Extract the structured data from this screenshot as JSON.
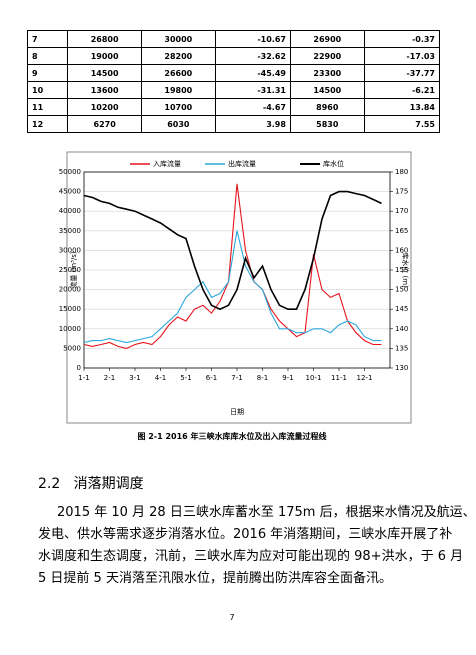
{
  "table": {
    "rows": [
      [
        "7",
        "26800",
        "30000",
        "-10.67",
        "26900",
        "-0.37"
      ],
      [
        "8",
        "19000",
        "28200",
        "-32.62",
        "22900",
        "-17.03"
      ],
      [
        "9",
        "14500",
        "26600",
        "-45.49",
        "23300",
        "-37.77"
      ],
      [
        "10",
        "13600",
        "19800",
        "-31.31",
        "14500",
        "-6.21"
      ],
      [
        "11",
        "10200",
        "10700",
        "-4.67",
        "8960",
        "13.84"
      ],
      [
        "12",
        "6270",
        "6030",
        "3.98",
        "5830",
        "7.55"
      ]
    ]
  },
  "chart_data": {
    "type": "line",
    "xlabel": "日期",
    "ylabel": "流量 (m³/s)",
    "y2label": "库水位 (m)",
    "categories": [
      "1-1",
      null,
      null,
      "2-1",
      null,
      null,
      "3-1",
      null,
      null,
      "4-1",
      null,
      null,
      "5-1",
      null,
      null,
      "6-1",
      null,
      null,
      "7-1",
      null,
      null,
      "8-1",
      null,
      null,
      "9-1",
      null,
      null,
      "10-1",
      null,
      null,
      "11-1",
      null,
      null,
      "12-1",
      null,
      null
    ],
    "series": [
      {
        "name": "入库流量",
        "color": "#e8141c",
        "values": [
          6000,
          5500,
          6000,
          6500,
          5500,
          5000,
          6000,
          6500,
          6000,
          8000,
          11000,
          13000,
          12000,
          15000,
          16000,
          14000,
          17000,
          22000,
          47000,
          30000,
          22000,
          20000,
          15000,
          12000,
          10000,
          8000,
          9000,
          29000,
          20000,
          18000,
          19000,
          12000,
          9000,
          7000,
          6000,
          6000
        ]
      },
      {
        "name": "出库流量",
        "color": "#2aa7dc",
        "values": [
          6500,
          7000,
          7000,
          7500,
          7000,
          6500,
          7000,
          7500,
          8000,
          10000,
          12000,
          14000,
          18000,
          20000,
          22000,
          18000,
          19000,
          22000,
          35000,
          26000,
          22000,
          20000,
          14000,
          10000,
          10000,
          9000,
          9000,
          10000,
          10000,
          9000,
          11000,
          12000,
          11000,
          8000,
          7000,
          7000
        ]
      },
      {
        "name": "库水位",
        "color": "#000000",
        "axis": "y2",
        "values": [
          174,
          173.5,
          172.5,
          172,
          171,
          170.5,
          170,
          169,
          168,
          167,
          165.5,
          164,
          163,
          156,
          150,
          146,
          145,
          146,
          150,
          158,
          153,
          156,
          150,
          146,
          145,
          145,
          150,
          158,
          168,
          174,
          175,
          175,
          174.5,
          174,
          173,
          172
        ]
      }
    ],
    "ylim": [
      0,
      50000
    ],
    "yticks": [
      0,
      5000,
      10000,
      15000,
      20000,
      25000,
      30000,
      35000,
      40000,
      45000,
      50000
    ],
    "y2lim": [
      130,
      180
    ],
    "y2ticks": [
      130,
      135,
      140,
      145,
      150,
      155,
      160,
      165,
      170,
      175,
      180
    ],
    "grid": true
  },
  "caption": "图 2-1   2016 年三峡水库库水位及出入库流量过程线",
  "heading": {
    "number": "2.2",
    "title": "消落期调度"
  },
  "paragraph": [
    "2015 年 10 月 28 日三峡水库蓄水至 175m 后，根据来水情况及航运、",
    "发电、供水等需求逐步消落水位。2016 年消落期间，三峡水库开展了补",
    "水调度和生态调度，汛前，三峡水库为应对可能出现的 98+洪水，于 6 月",
    "5 日提前 5 天消落至汛限水位，提前腾出防洪库容全面备汛。"
  ],
  "page_number": "7"
}
